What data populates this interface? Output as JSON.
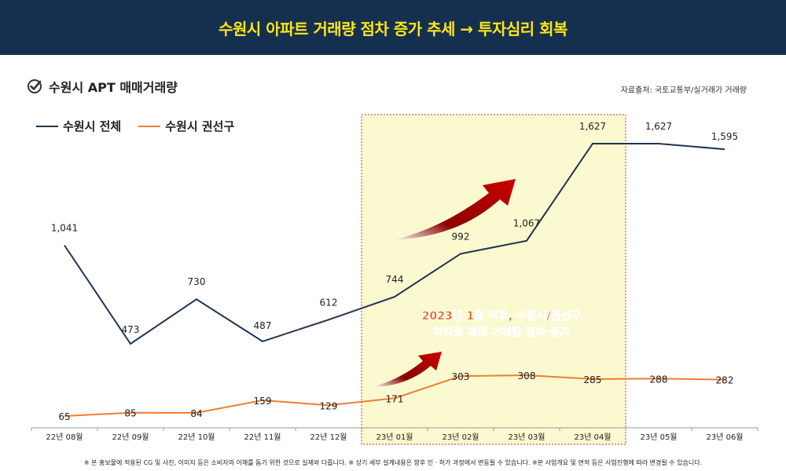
{
  "banner": {
    "title": "수원시 아파트 거래량 점차 증가 추세 → 투자심리 회복"
  },
  "section": {
    "title": "수원시 APT 매매거래량",
    "icon": "check-circle-icon"
  },
  "source": "자료출처:   국토교통부/실거래가 거래량",
  "annotation": {
    "line1": "2023년 1월 이후, 수원시/권선구",
    "line2": "아파트 매매 거래량 점차 증가"
  },
  "footnote": "※ 본 홍보물에 적용된 CG 및 사진, 이미지 등은 소비자의 이해를 돕기 위한 것으로 실제와 다릅니다. ※ 상기 세부 설계내용은 향후 인 · 허가 과정에서 변동될 수 있습니다. ※본 사업개요 및 면적 등은 사업진행에 따라 변경될 수 있습니다.",
  "colors": {
    "banner": "#15304f",
    "banner_text": "#ffe619",
    "series1": "#1f3350",
    "series2": "#ee7d31",
    "highlight": "#fbf9cf",
    "highlight_border": "#c0392b",
    "annotation_text": "#e2502c",
    "arrow": "#b30000"
  },
  "chart_data": {
    "type": "line",
    "categories": [
      "22년 08월",
      "22년 09월",
      "22년 10월",
      "22년 11월",
      "22년 12월",
      "23년 01월",
      "23년 02월",
      "23년 03월",
      "23년 04월",
      "23년 05월",
      "23년 06월"
    ],
    "series": [
      {
        "name": "수원시 전체",
        "values": [
          1041,
          473,
          730,
          487,
          612,
          744,
          992,
          1067,
          1627,
          1627,
          1595
        ],
        "labels": [
          "1,041",
          "473",
          "730",
          "487",
          "612",
          "744",
          "992",
          "1,067",
          "1,627",
          "1,627",
          "1,595"
        ]
      },
      {
        "name": "수원시 권선구",
        "values": [
          65,
          85,
          84,
          159,
          129,
          171,
          303,
          308,
          285,
          288,
          282
        ],
        "labels": [
          "65",
          "85",
          "84",
          "159",
          "129",
          "171",
          "303",
          "308",
          "285",
          "288",
          "282"
        ]
      }
    ],
    "highlight_range": [
      "23년 01월",
      "23년 04월"
    ],
    "legend": "top-left",
    "grid": false
  }
}
